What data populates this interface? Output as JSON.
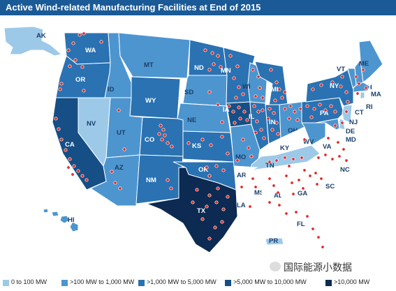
{
  "title": "Active Wind-related Manufacturing Facilities at End of 2015",
  "colors": {
    "cat1": "#9dc9e8",
    "cat2": "#4d95cf",
    "cat3": "#2a72b2",
    "cat4": "#154f86",
    "cat5": "#0c2a52",
    "none": "#ffffff",
    "facility_dot": "#e02a2a",
    "title_bar": "#1a5a96"
  },
  "legend": [
    {
      "label": "0 to 100 MW",
      "color": "#9dc9e8"
    },
    {
      "label": ">100 MW to 1,000 MW",
      "color": "#4d95cf"
    },
    {
      "label": ">1,000 MW to 5,000 MW",
      "color": "#2a72b2"
    },
    {
      "label": ">5,000 MW to 10,000 MW",
      "color": "#154f86"
    },
    {
      "label": ">10,000 MW",
      "color": "#0c2a52"
    }
  ],
  "states": [
    {
      "abbr": "AK",
      "category": "0 to 100 MW"
    },
    {
      "abbr": "HI",
      "category": ">100 MW to 1,000 MW"
    },
    {
      "abbr": "WA",
      "category": ">1,000 MW to 5,000 MW"
    },
    {
      "abbr": "OR",
      "category": ">1,000 MW to 5,000 MW"
    },
    {
      "abbr": "CA",
      "category": ">5,000 MW to 10,000 MW"
    },
    {
      "abbr": "NV",
      "category": "0 to 100 MW"
    },
    {
      "abbr": "ID",
      "category": ">100 MW to 1,000 MW"
    },
    {
      "abbr": "MT",
      "category": ">100 MW to 1,000 MW"
    },
    {
      "abbr": "WY",
      "category": ">1,000 MW to 5,000 MW"
    },
    {
      "abbr": "UT",
      "category": ">100 MW to 1,000 MW"
    },
    {
      "abbr": "AZ",
      "category": ">100 MW to 1,000 MW"
    },
    {
      "abbr": "CO",
      "category": ">1,000 MW to 5,000 MW"
    },
    {
      "abbr": "NM",
      "category": ">1,000 MW to 5,000 MW"
    },
    {
      "abbr": "ND",
      "category": ">1,000 MW to 5,000 MW"
    },
    {
      "abbr": "SD",
      "category": ">100 MW to 1,000 MW"
    },
    {
      "abbr": "NE",
      "category": ">100 MW to 1,000 MW"
    },
    {
      "abbr": "KS",
      "category": ">1,000 MW to 5,000 MW"
    },
    {
      "abbr": "OK",
      "category": ">1,000 MW to 5,000 MW"
    },
    {
      "abbr": "TX",
      "category": ">10,000 MW"
    },
    {
      "abbr": "MN",
      "category": ">1,000 MW to 5,000 MW"
    },
    {
      "abbr": "IA",
      "category": ">5,000 MW to 10,000 MW"
    },
    {
      "abbr": "MO",
      "category": ">100 MW to 1,000 MW"
    },
    {
      "abbr": "AR",
      "category": ""
    },
    {
      "abbr": "LA",
      "category": ""
    },
    {
      "abbr": "WI",
      "category": ">100 MW to 1,000 MW"
    },
    {
      "abbr": "IL",
      "category": ">1,000 MW to 5,000 MW"
    },
    {
      "abbr": "MI",
      "category": ">1,000 MW to 5,000 MW"
    },
    {
      "abbr": "IN",
      "category": ">1,000 MW to 5,000 MW"
    },
    {
      "abbr": "OH",
      "category": ">100 MW to 1,000 MW"
    },
    {
      "abbr": "KY",
      "category": ""
    },
    {
      "abbr": "TN",
      "category": "0 to 100 MW"
    },
    {
      "abbr": "MS",
      "category": ""
    },
    {
      "abbr": "AL",
      "category": ""
    },
    {
      "abbr": "GA",
      "category": ""
    },
    {
      "abbr": "FL",
      "category": ""
    },
    {
      "abbr": "SC",
      "category": ""
    },
    {
      "abbr": "NC",
      "category": ""
    },
    {
      "abbr": "VA",
      "category": ""
    },
    {
      "abbr": "WV",
      "category": ">100 MW to 1,000 MW"
    },
    {
      "abbr": "PA",
      "category": ">1,000 MW to 5,000 MW"
    },
    {
      "abbr": "NY",
      "category": ">1,000 MW to 5,000 MW"
    },
    {
      "abbr": "VT",
      "category": ">100 MW to 1,000 MW"
    },
    {
      "abbr": "NH",
      "category": ">100 MW to 1,000 MW"
    },
    {
      "abbr": "ME",
      "category": ">100 MW to 1,000 MW"
    },
    {
      "abbr": "MA",
      "category": ">100 MW to 1,000 MW"
    },
    {
      "abbr": "RI",
      "category": "0 to 100 MW"
    },
    {
      "abbr": "CT",
      "category": ""
    },
    {
      "abbr": "NJ",
      "category": "0 to 100 MW"
    },
    {
      "abbr": "DE",
      "category": "0 to 100 MW"
    },
    {
      "abbr": "MD",
      "category": ">100 MW to 1,000 MW"
    },
    {
      "abbr": "PR",
      "category": "0 to 100 MW"
    }
  ],
  "watermark": "国际能源小数据"
}
